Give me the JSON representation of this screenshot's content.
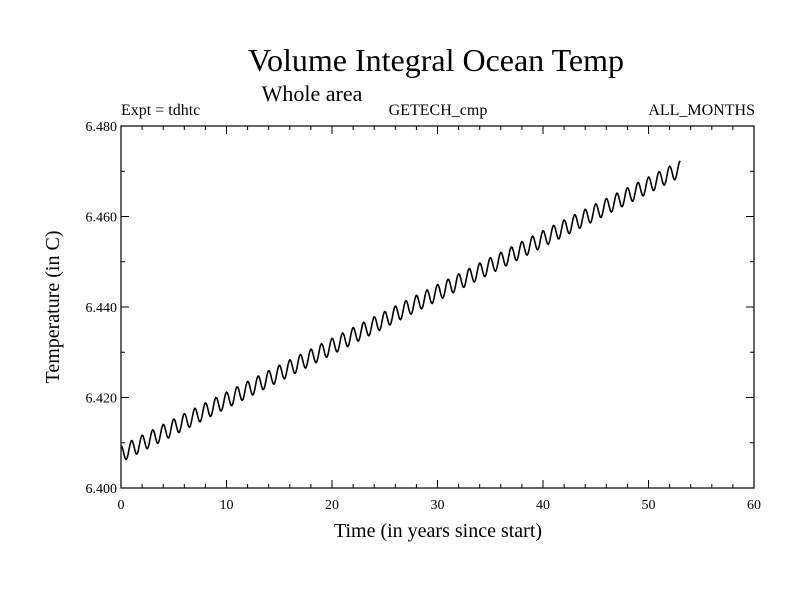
{
  "chart_data": {
    "type": "line",
    "title": "Volume Integral Ocean Temp",
    "subtitle": "Whole area",
    "annotations": {
      "left": "Expt = tdhtc",
      "center": "GETECH_cmp",
      "right": "ALL_MONTHS"
    },
    "xlabel": "Time (in years since start)",
    "ylabel": "Temperature (in C)",
    "xlim": [
      0,
      60
    ],
    "ylim": [
      6.4,
      6.48
    ],
    "x_ticks": [
      0,
      10,
      20,
      30,
      40,
      50,
      60
    ],
    "x_tick_labels": [
      "0",
      "10",
      "20",
      "30",
      "40",
      "50",
      "60"
    ],
    "y_ticks": [
      6.4,
      6.42,
      6.44,
      6.46,
      6.48
    ],
    "y_tick_labels": [
      "6.400",
      "6.420",
      "6.440",
      "6.460",
      "6.480"
    ],
    "grid": false,
    "series": [
      {
        "name": "Volume integral ocean temperature",
        "color": "#000000",
        "x_start": 0,
        "x_end": 53,
        "trend_start": 6.4075,
        "trend_end": 6.4705,
        "seasonal_amplitude": 0.0018,
        "samples_per_year": 12
      }
    ]
  }
}
